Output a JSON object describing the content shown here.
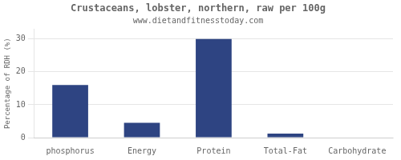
{
  "chart_data": {
    "type": "bar",
    "title": "Crustaceans, lobster, northern, raw per 100g",
    "subtitle": "www.dietandfitnesstoday.com",
    "categories": [
      "phosphorus",
      "Energy",
      "Protein",
      "Total-Fat",
      "Carbohydrate"
    ],
    "values": [
      16,
      4.5,
      30,
      1.2,
      0
    ],
    "color": "#2e4482",
    "ylabel": "Percentage of RDH (%)",
    "ylim": [
      0,
      33
    ],
    "yticks": [
      0,
      10,
      20,
      30
    ],
    "grid": true
  }
}
